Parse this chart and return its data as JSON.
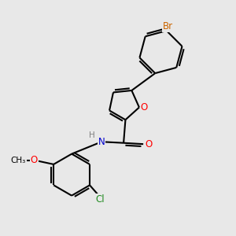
{
  "bg_color": "#e8e8e8",
  "bond_color": "#000000",
  "bond_width": 1.5,
  "atom_colors": {
    "Br": "#cc6600",
    "O": "#ff0000",
    "N": "#0000cd",
    "Cl": "#228B22",
    "C": "#000000",
    "H": "#808080"
  },
  "font_size_atom": 8.5,
  "font_size_small": 7.5,
  "figsize": [
    3.0,
    3.0
  ],
  "dpi": 100
}
